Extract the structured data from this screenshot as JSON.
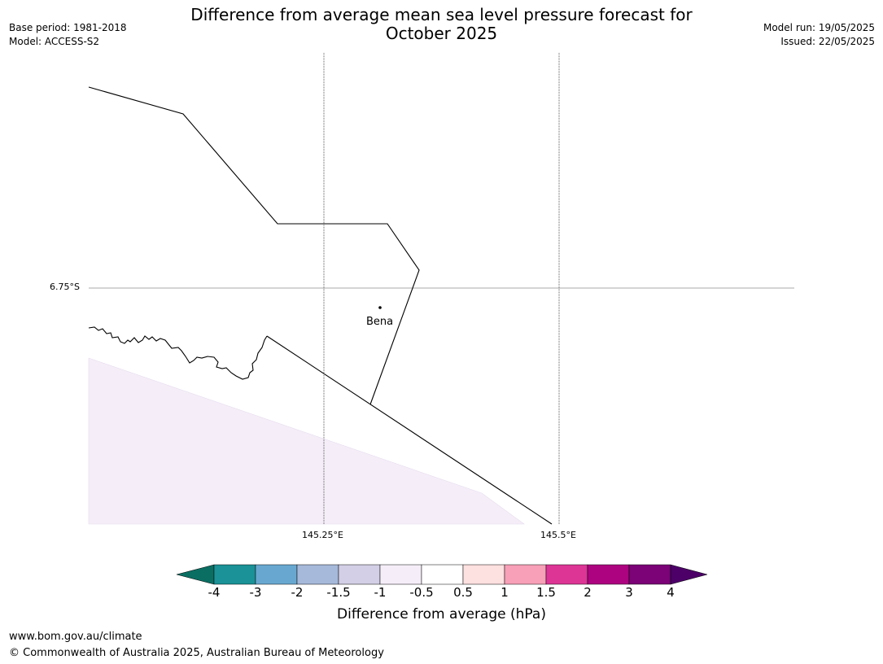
{
  "header": {
    "title_line1": "Difference from average mean sea level pressure forecast for",
    "title_line2": "October 2025",
    "base_period": "Base period: 1981-2018",
    "model": "Model: ACCESS-S2",
    "model_run": "Model run: 19/05/2025",
    "issued": "Issued: 22/05/2025"
  },
  "map": {
    "lat_labels": [
      "6.75°S"
    ],
    "lon_labels": [
      "145.25°E",
      "145.5°E"
    ],
    "places": [
      {
        "name": "Bena"
      }
    ],
    "shading_value_range": "-1 to -0.5"
  },
  "colorbar": {
    "title": "Difference from average (hPa)",
    "labels": [
      "-4",
      "-3",
      "-2",
      "-1.5",
      "-1",
      "-0.5",
      "0.5",
      "1",
      "1.5",
      "2",
      "3",
      "4"
    ],
    "colors": {
      "below_min": "#0b6e63",
      "bins": [
        "#1b9297",
        "#68a8d0",
        "#a6b9da",
        "#d2cfe6",
        "#f5eef8",
        "#ffffff",
        "#fde0e0",
        "#f7a0b7",
        "#dc3596",
        "#ad0380",
        "#7b0277"
      ],
      "above_max": "#4c0068"
    }
  },
  "footer": {
    "url": "www.bom.gov.au/climate",
    "copyright": "© Commonwealth of Australia 2025, Australian Bureau of Meteorology"
  }
}
